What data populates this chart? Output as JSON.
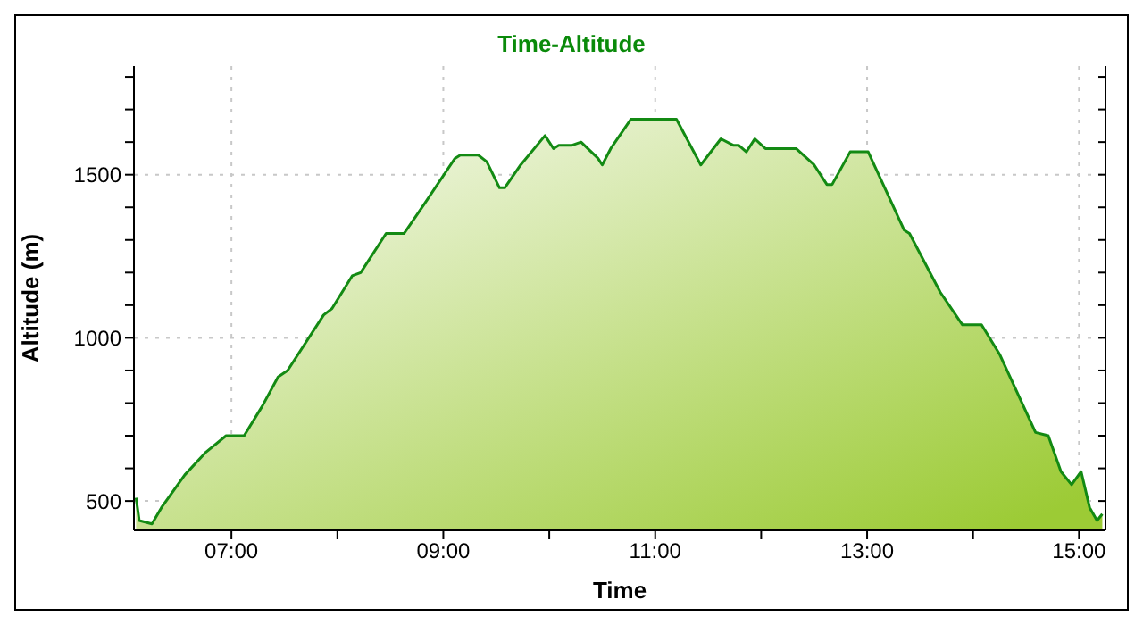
{
  "chart_data": {
    "type": "area",
    "title": "Time-Altitude",
    "xlabel": "Time",
    "ylabel": "Altitude (m)",
    "x": [
      6.1,
      6.13,
      6.25,
      6.34,
      6.56,
      6.76,
      6.95,
      7.12,
      7.29,
      7.44,
      7.53,
      7.87,
      7.95,
      8.14,
      8.22,
      8.46,
      8.63,
      8.82,
      9.11,
      9.16,
      9.33,
      9.41,
      9.53,
      9.58,
      9.73,
      9.96,
      10.04,
      10.09,
      10.21,
      10.3,
      10.46,
      10.5,
      10.58,
      10.77,
      10.97,
      11.2,
      11.43,
      11.62,
      11.74,
      11.79,
      11.86,
      11.94,
      12.04,
      12.33,
      12.5,
      12.62,
      12.67,
      12.84,
      13.01,
      13.35,
      13.4,
      13.69,
      13.9,
      14.08,
      14.25,
      14.59,
      14.71,
      14.83,
      14.93,
      15.02,
      15.1,
      15.17,
      15.22
    ],
    "series": [
      {
        "color": "#138a13",
        "values": [
          510,
          440,
          430,
          480,
          580,
          650,
          700,
          700,
          790,
          880,
          900,
          1070,
          1090,
          1190,
          1200,
          1320,
          1320,
          1410,
          1550,
          1560,
          1560,
          1540,
          1460,
          1460,
          1530,
          1620,
          1580,
          1590,
          1590,
          1600,
          1550,
          1530,
          1580,
          1670,
          1670,
          1670,
          1530,
          1610,
          1590,
          1590,
          1570,
          1610,
          1580,
          1580,
          1530,
          1470,
          1470,
          1570,
          1570,
          1330,
          1320,
          1140,
          1040,
          1040,
          950,
          710,
          700,
          590,
          550,
          590,
          480,
          440,
          460
        ]
      }
    ],
    "xlim": [
      6.08,
      15.25
    ],
    "xticks": [
      {
        "value": 7,
        "label": "07:00"
      },
      {
        "value": 8,
        "label": null
      },
      {
        "value": 9,
        "label": "09:00"
      },
      {
        "value": 10,
        "label": null
      },
      {
        "value": 11,
        "label": "11:00"
      },
      {
        "value": 12,
        "label": null
      },
      {
        "value": 13,
        "label": "13:00"
      },
      {
        "value": 14,
        "label": null
      },
      {
        "value": 15,
        "label": "15:00"
      }
    ],
    "ylim": [
      410,
      1833
    ],
    "yticks": [
      500,
      {
        "value": 600,
        "label": null
      },
      {
        "value": 700,
        "label": null
      },
      {
        "value": 800,
        "label": null
      },
      {
        "value": 900,
        "label": null
      },
      1000,
      {
        "value": 1100,
        "label": null
      },
      {
        "value": 1200,
        "label": null
      },
      {
        "value": 1300,
        "label": null
      },
      {
        "value": 1400,
        "label": null
      },
      1500,
      {
        "value": 1600,
        "label": null
      },
      {
        "value": 1700,
        "label": null
      },
      {
        "value": 1800,
        "label": null
      }
    ],
    "grid": true,
    "line_style": "solid",
    "marker": "none"
  }
}
